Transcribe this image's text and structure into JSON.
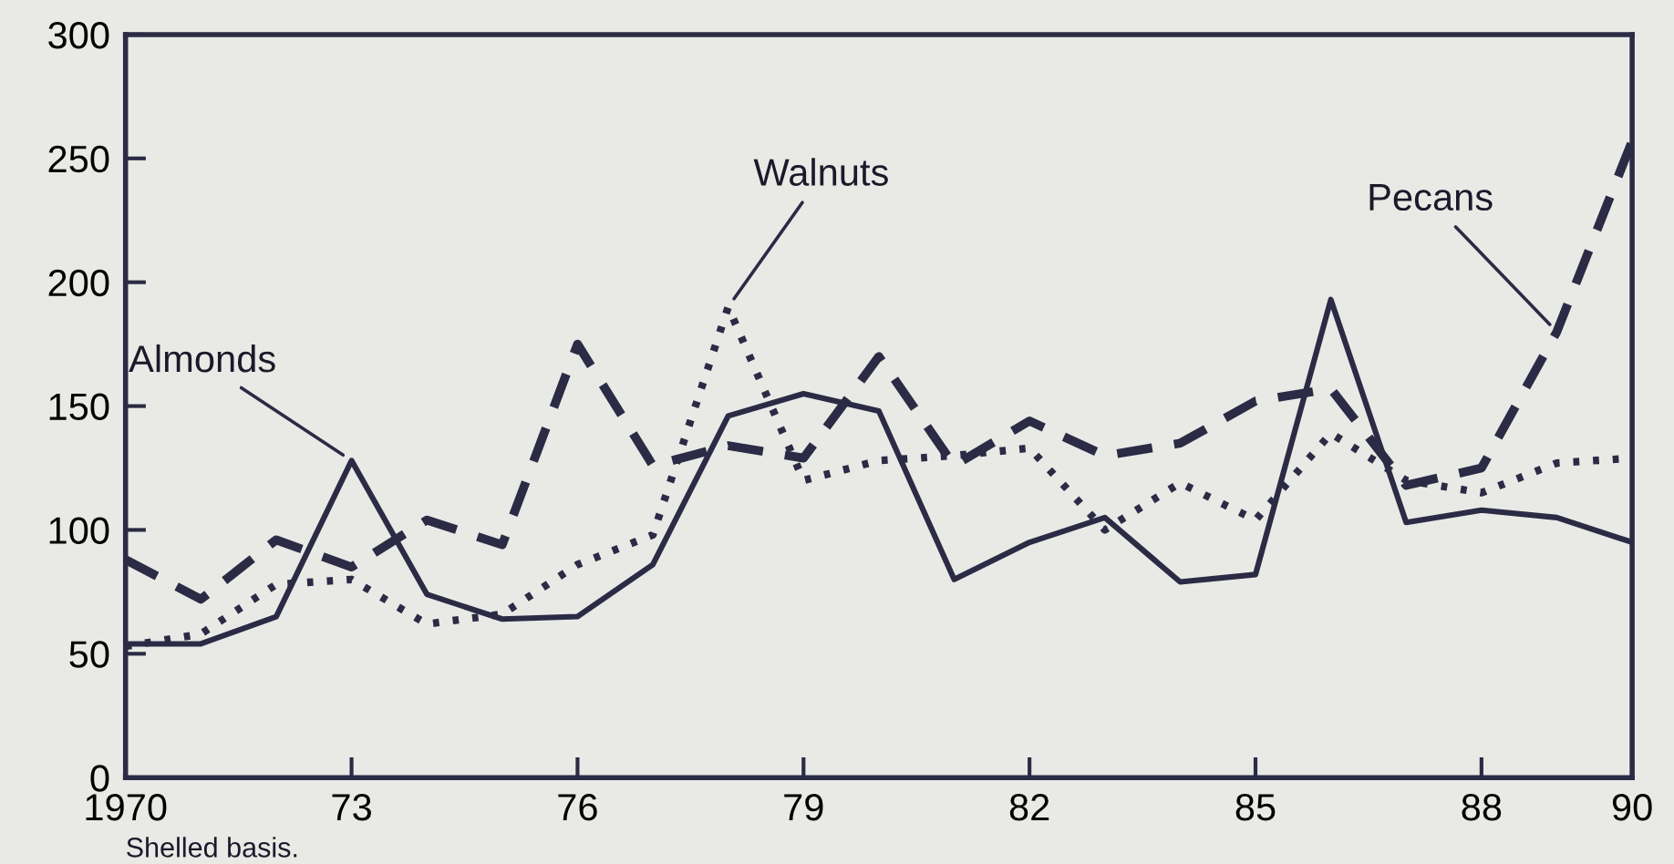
{
  "chart_data": {
    "type": "line",
    "x": [
      1970,
      1971,
      1972,
      1973,
      1974,
      1975,
      1976,
      1977,
      1978,
      1979,
      1980,
      1981,
      1982,
      1983,
      1984,
      1985,
      1986,
      1987,
      1988,
      1989,
      1990
    ],
    "series": [
      {
        "color": "#2b2b45",
        "line_style": "solid",
        "values": [
          54,
          54,
          65,
          128,
          74,
          64,
          65,
          86,
          146,
          155,
          148,
          80,
          95,
          105,
          79,
          82,
          193,
          103,
          108,
          105,
          95
        ]
      },
      {
        "color": "#2b2b45",
        "line_style": "dashed",
        "values": [
          88,
          72,
          96,
          85,
          104,
          94,
          175,
          126,
          134,
          129,
          170,
          126,
          144,
          130,
          135,
          152,
          157,
          118,
          125,
          180,
          257
        ]
      },
      {
        "color": "#2b2b45",
        "line_style": "dotted",
        "values": [
          53,
          58,
          78,
          80,
          62,
          66,
          86,
          98,
          190,
          120,
          128,
          130,
          133,
          100,
          119,
          104,
          139,
          120,
          115,
          127,
          129
        ]
      }
    ],
    "xlim": [
      1970,
      1990
    ],
    "xticks": [
      1970,
      {
        "value": 1973,
        "label": "73"
      },
      {
        "value": 1976,
        "label": "76"
      },
      {
        "value": 1979,
        "label": "79"
      },
      {
        "value": 1982,
        "label": "82"
      },
      {
        "value": 1985,
        "label": "85"
      },
      {
        "value": 1988,
        "label": "88"
      },
      {
        "value": 1990,
        "label": "90"
      }
    ],
    "ylim": [
      0,
      300
    ],
    "yticks": [
      0,
      50,
      100,
      150,
      200,
      250,
      300
    ],
    "annotations": [
      {
        "text": "Almonds",
        "x": 1973,
        "y": 128
      },
      {
        "text": "Walnuts",
        "x": 1978,
        "y": 190
      },
      {
        "text": "Pecans",
        "x": 1989,
        "y": 180
      },
      "Shelled basis."
    ]
  }
}
